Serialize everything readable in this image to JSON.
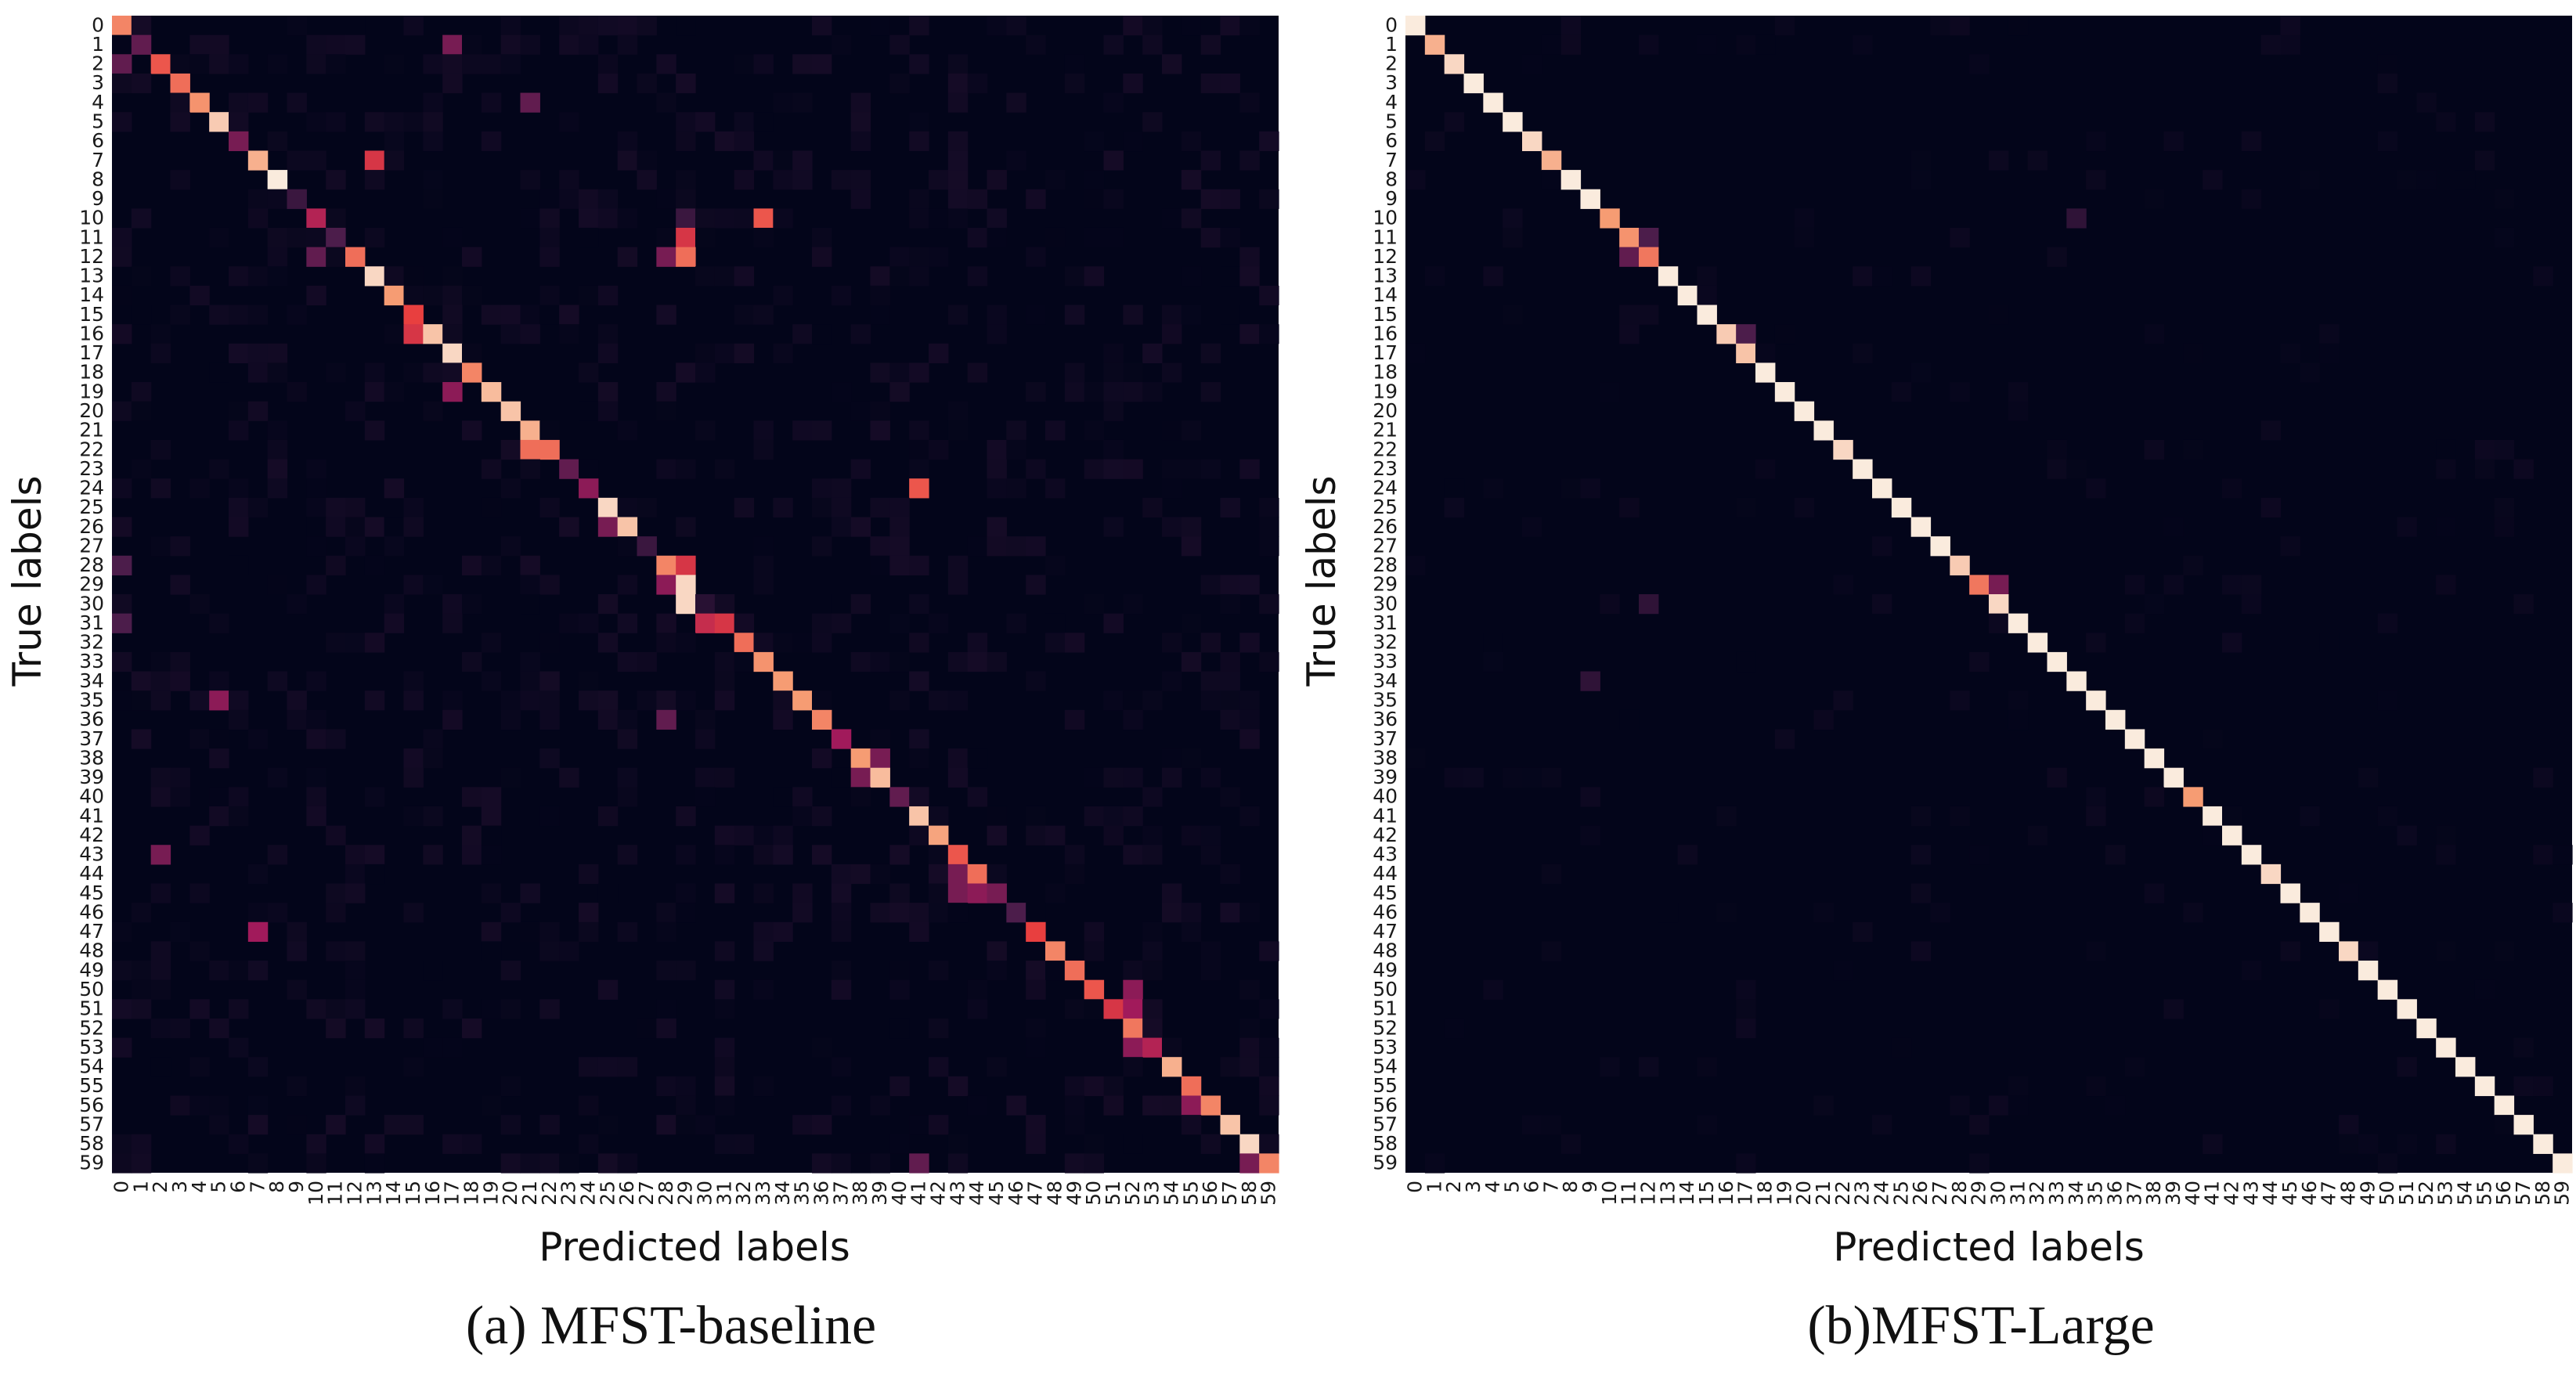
{
  "chart_data": [
    {
      "type": "heatmap",
      "xlabel": "Predicted labels",
      "ylabel": "True labels",
      "caption": "(a) MFST-baseline",
      "categories": [
        "0",
        "1",
        "2",
        "3",
        "4",
        "5",
        "6",
        "7",
        "8",
        "9",
        "10",
        "11",
        "12",
        "13",
        "14",
        "15",
        "16",
        "17",
        "18",
        "19",
        "20",
        "21",
        "22",
        "23",
        "24",
        "25",
        "26",
        "27",
        "28",
        "29",
        "30",
        "31",
        "32",
        "33",
        "34",
        "35",
        "36",
        "37",
        "38",
        "39",
        "40",
        "41",
        "42",
        "43",
        "44",
        "45",
        "46",
        "47",
        "48",
        "49",
        "50",
        "51",
        "52",
        "53",
        "54",
        "55",
        "56",
        "57",
        "58",
        "59"
      ],
      "colorscale": [
        "#03051a",
        "#4c1d4b",
        "#a11a5b",
        "#e83f3f",
        "#f69c73",
        "#faebdd"
      ],
      "diagonal": [
        0.75,
        0.25,
        0.65,
        0.7,
        0.78,
        0.92,
        0.3,
        0.85,
        1.0,
        0.15,
        0.45,
        0.2,
        0.7,
        0.95,
        0.8,
        0.6,
        0.9,
        0.95,
        0.75,
        0.88,
        0.9,
        0.85,
        0.7,
        0.25,
        0.35,
        0.95,
        0.9,
        0.15,
        0.75,
        0.95,
        0.1,
        0.55,
        0.7,
        0.78,
        0.8,
        0.8,
        0.75,
        0.4,
        0.8,
        0.88,
        0.25,
        0.9,
        0.82,
        0.65,
        0.7,
        0.3,
        0.2,
        0.6,
        0.75,
        0.7,
        0.65,
        0.55,
        0.72,
        0.45,
        0.85,
        0.7,
        0.75,
        0.9,
        0.95,
        0.75
      ],
      "off_diagonal": [
        {
          "row": 1,
          "col": 17,
          "value": 0.3
        },
        {
          "row": 2,
          "col": 0,
          "value": 0.25
        },
        {
          "row": 4,
          "col": 21,
          "value": 0.25
        },
        {
          "row": 7,
          "col": 13,
          "value": 0.55
        },
        {
          "row": 10,
          "col": 33,
          "value": 0.65
        },
        {
          "row": 10,
          "col": 29,
          "value": 0.15
        },
        {
          "row": 11,
          "col": 29,
          "value": 0.55
        },
        {
          "row": 12,
          "col": 29,
          "value": 0.7
        },
        {
          "row": 12,
          "col": 28,
          "value": 0.3
        },
        {
          "row": 12,
          "col": 10,
          "value": 0.25
        },
        {
          "row": 16,
          "col": 15,
          "value": 0.55
        },
        {
          "row": 19,
          "col": 17,
          "value": 0.35
        },
        {
          "row": 22,
          "col": 21,
          "value": 0.7
        },
        {
          "row": 24,
          "col": 41,
          "value": 0.65
        },
        {
          "row": 26,
          "col": 25,
          "value": 0.3
        },
        {
          "row": 28,
          "col": 0,
          "value": 0.2
        },
        {
          "row": 28,
          "col": 29,
          "value": 0.55
        },
        {
          "row": 29,
          "col": 28,
          "value": 0.35
        },
        {
          "row": 30,
          "col": 29,
          "value": 0.95
        },
        {
          "row": 31,
          "col": 30,
          "value": 0.5
        },
        {
          "row": 31,
          "col": 0,
          "value": 0.2
        },
        {
          "row": 35,
          "col": 5,
          "value": 0.35
        },
        {
          "row": 36,
          "col": 28,
          "value": 0.25
        },
        {
          "row": 38,
          "col": 39,
          "value": 0.3
        },
        {
          "row": 39,
          "col": 38,
          "value": 0.3
        },
        {
          "row": 43,
          "col": 2,
          "value": 0.3
        },
        {
          "row": 44,
          "col": 43,
          "value": 0.3
        },
        {
          "row": 45,
          "col": 44,
          "value": 0.35
        },
        {
          "row": 45,
          "col": 43,
          "value": 0.3
        },
        {
          "row": 47,
          "col": 7,
          "value": 0.4
        },
        {
          "row": 50,
          "col": 52,
          "value": 0.35
        },
        {
          "row": 51,
          "col": 52,
          "value": 0.4
        },
        {
          "row": 53,
          "col": 52,
          "value": 0.35
        },
        {
          "row": 56,
          "col": 55,
          "value": 0.35
        },
        {
          "row": 59,
          "col": 41,
          "value": 0.25
        },
        {
          "row": 59,
          "col": 58,
          "value": 0.3
        }
      ]
    },
    {
      "type": "heatmap",
      "xlabel": "Predicted labels",
      "ylabel": "True labels",
      "caption": "(b)MFST-Large",
      "categories": [
        "0",
        "1",
        "2",
        "3",
        "4",
        "5",
        "6",
        "7",
        "8",
        "9",
        "10",
        "11",
        "12",
        "13",
        "14",
        "15",
        "16",
        "17",
        "18",
        "19",
        "20",
        "21",
        "22",
        "23",
        "24",
        "25",
        "26",
        "27",
        "28",
        "29",
        "30",
        "31",
        "32",
        "33",
        "34",
        "35",
        "36",
        "37",
        "38",
        "39",
        "40",
        "41",
        "42",
        "43",
        "44",
        "45",
        "46",
        "47",
        "48",
        "49",
        "50",
        "51",
        "52",
        "53",
        "54",
        "55",
        "56",
        "57",
        "58",
        "59"
      ],
      "colorscale": [
        "#03051a",
        "#4c1d4b",
        "#a11a5b",
        "#e83f3f",
        "#f69c73",
        "#faebdd"
      ],
      "diagonal": [
        1.0,
        0.85,
        0.95,
        1.0,
        1.0,
        1.0,
        0.95,
        0.85,
        1.0,
        1.0,
        0.8,
        0.78,
        0.72,
        1.0,
        1.0,
        1.0,
        0.92,
        0.9,
        1.0,
        1.0,
        1.0,
        1.0,
        0.95,
        1.0,
        1.0,
        1.0,
        1.0,
        1.0,
        0.92,
        0.72,
        0.95,
        1.0,
        1.0,
        1.0,
        1.0,
        1.0,
        1.0,
        1.0,
        1.0,
        1.0,
        0.8,
        1.0,
        1.0,
        1.0,
        0.95,
        1.0,
        1.0,
        1.0,
        0.95,
        1.0,
        1.0,
        1.0,
        1.0,
        1.0,
        1.0,
        1.0,
        1.0,
        1.0,
        1.0,
        1.0
      ],
      "off_diagonal": [
        {
          "row": 10,
          "col": 34,
          "value": 0.12
        },
        {
          "row": 11,
          "col": 12,
          "value": 0.2
        },
        {
          "row": 12,
          "col": 11,
          "value": 0.25
        },
        {
          "row": 16,
          "col": 17,
          "value": 0.2
        },
        {
          "row": 29,
          "col": 30,
          "value": 0.3
        },
        {
          "row": 30,
          "col": 12,
          "value": 0.12
        },
        {
          "row": 34,
          "col": 9,
          "value": 0.12
        }
      ]
    }
  ]
}
